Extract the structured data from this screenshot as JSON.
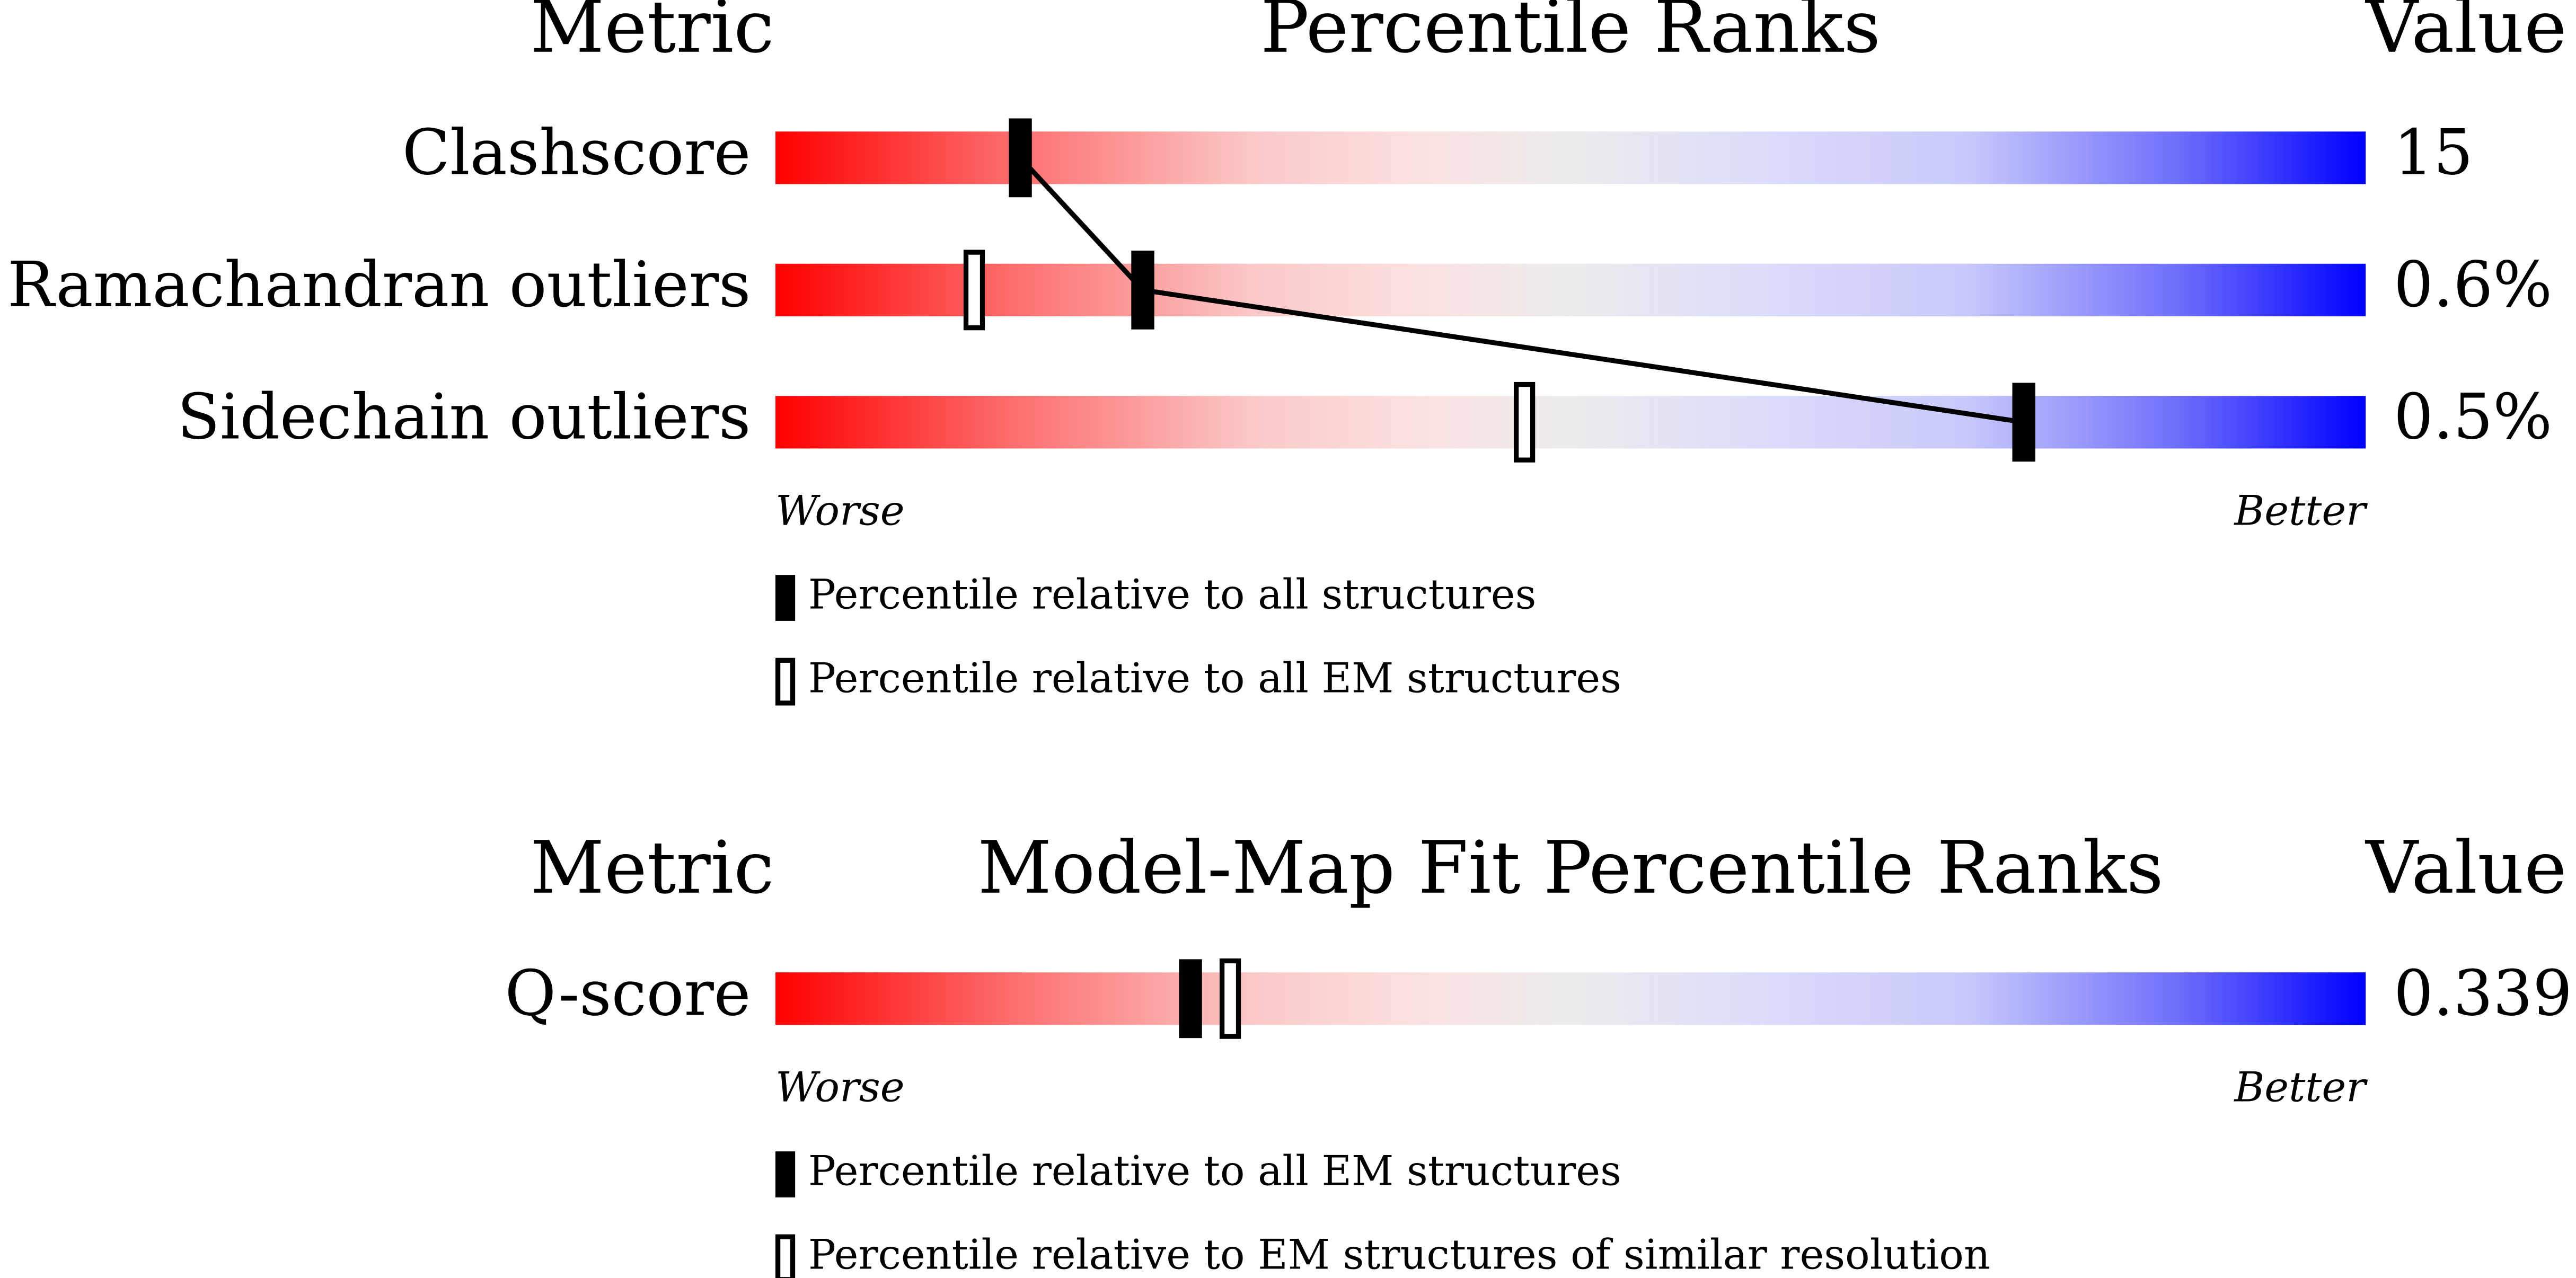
{
  "chart_data": [
    {
      "type": "slider",
      "header": {
        "metric": "Metric",
        "title": "Percentile Ranks",
        "value": "Value"
      },
      "xlim": [
        0,
        100
      ],
      "axis_labels": {
        "low": "Worse",
        "high": "Better"
      },
      "connect": true,
      "categories": [
        "Clashscore",
        "Ramachandran outliers",
        "Sidechain outliers"
      ],
      "metric_values": [
        "15",
        "0.6%",
        "0.5%"
      ],
      "series": [
        {
          "name": "Percentile relative to all structures",
          "style": "filled",
          "color": "#000000",
          "values": [
            15.4,
            23.1,
            78.5
          ]
        },
        {
          "name": "Percentile relative to all EM structures",
          "style": "open",
          "color": "#000000",
          "values": [
            null,
            12.5,
            47.1
          ]
        }
      ]
    },
    {
      "type": "slider",
      "header": {
        "metric": "Metric",
        "title": "Model-Map Fit Percentile Ranks",
        "value": "Value"
      },
      "xlim": [
        0,
        100
      ],
      "axis_labels": {
        "low": "Worse",
        "high": "Better"
      },
      "connect": false,
      "categories": [
        "Q-score"
      ],
      "metric_values": [
        "0.339"
      ],
      "series": [
        {
          "name": "Percentile relative to all EM structures",
          "style": "filled",
          "color": "#000000",
          "values": [
            26.1
          ]
        },
        {
          "name": "Percentile relative to EM structures of similar resolution",
          "style": "open",
          "color": "#000000",
          "values": [
            28.6
          ]
        }
      ]
    }
  ]
}
